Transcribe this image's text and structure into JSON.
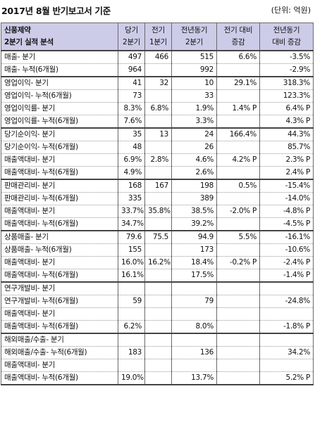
{
  "title": "2017년 8월 반기보고서 기준",
  "unit": "(단위: 억원)",
  "header": {
    "company": "신풍제약",
    "subtitle": "2분기 실적 분석",
    "columns": [
      "당기\n2분기",
      "전기\n1분기",
      "전년동기\n2분기",
      "전기 대비\n증감",
      "전년동기\n대비 증감"
    ]
  },
  "sections": [
    {
      "rows": [
        [
          "매출- 분기",
          "497",
          "466",
          "515",
          "6.6%",
          "-3.5%"
        ],
        [
          "매출- 누적(6개월)",
          "964",
          "",
          "992",
          "",
          "-2.9%"
        ]
      ]
    },
    {
      "rows": [
        [
          "영업이익- 분기",
          "41",
          "32",
          "10",
          "29.1%",
          "318.3%"
        ],
        [
          "영업이익- 누적(6개월)",
          "73",
          "",
          "33",
          "",
          "123.3%"
        ],
        [
          "영업이익률- 분기",
          "8.3%",
          "6.8%",
          "1.9%",
          "1.4% P",
          "6.4% P"
        ],
        [
          "영업이익률- 누적(6개월)",
          "7.6%",
          "",
          "3.3%",
          "",
          "4.3% P"
        ]
      ]
    },
    {
      "rows": [
        [
          "당기순이익- 분기",
          "35",
          "13",
          "24",
          "166.4%",
          "44.3%"
        ],
        [
          "당기순이익- 누적(6개월)",
          "48",
          "",
          "26",
          "",
          "85.7%"
        ],
        [
          "매출액대비- 분기",
          "6.9%",
          "2.8%",
          "4.6%",
          "4.2% P",
          "2.3% P"
        ],
        [
          "매출액대비- 누적(6개월)",
          "4.9%",
          "",
          "2.6%",
          "",
          "2.4% P"
        ]
      ]
    },
    {
      "rows": [
        [
          "판매관리비- 분기",
          "168",
          "167",
          "198",
          "0.5%",
          "-15.4%"
        ],
        [
          "판매관리비- 누적(6개월)",
          "335",
          "",
          "389",
          "",
          "-14.0%"
        ],
        [
          "매출액대비- 분기",
          "33.7%",
          "35.8%",
          "38.5%",
          "-2.0% P",
          "-4.8% P"
        ],
        [
          "매출액대비- 누적(6개월)",
          "34.7%",
          "",
          "39.2%",
          "",
          "-4.5% P"
        ]
      ]
    },
    {
      "rows": [
        [
          "상품매출- 분기",
          "79.6",
          "75.5",
          "94.9",
          "5.5%",
          "-16.1%"
        ],
        [
          "상품매출- 누적(6개월)",
          "155",
          "",
          "173",
          "",
          "-10.6%"
        ],
        [
          "매출액대비- 분기",
          "16.0%",
          "16.2%",
          "18.4%",
          "-0.2% P",
          "-2.4% P"
        ],
        [
          "매출액대비- 누적(6개월)",
          "16.1%",
          "",
          "17.5%",
          "",
          "-1.4% P"
        ]
      ]
    },
    {
      "rows": [
        [
          "연구개발비- 분기",
          "",
          "",
          "",
          "",
          ""
        ],
        [
          "연구개발비- 누적(6개월)",
          "59",
          "",
          "79",
          "",
          "-24.8%"
        ],
        [
          "매출액대비- 분기",
          "",
          "",
          "",
          "",
          ""
        ],
        [
          "매출액대비- 누적(6개월)",
          "6.2%",
          "",
          "8.0%",
          "",
          "-1.8% P"
        ]
      ]
    },
    {
      "rows": [
        [
          "해외매출/수출- 분기",
          "",
          "",
          "",
          "",
          ""
        ],
        [
          "해외매출/수출- 누적(6개월)",
          "183",
          "",
          "136",
          "",
          "34.2%"
        ],
        [
          "매출액대비- 분기",
          "",
          "",
          "",
          "",
          ""
        ],
        [
          "매출액대비- 누적(6개월)",
          "19.0%",
          "",
          "13.7%",
          "",
          "5.2% P"
        ]
      ]
    }
  ]
}
